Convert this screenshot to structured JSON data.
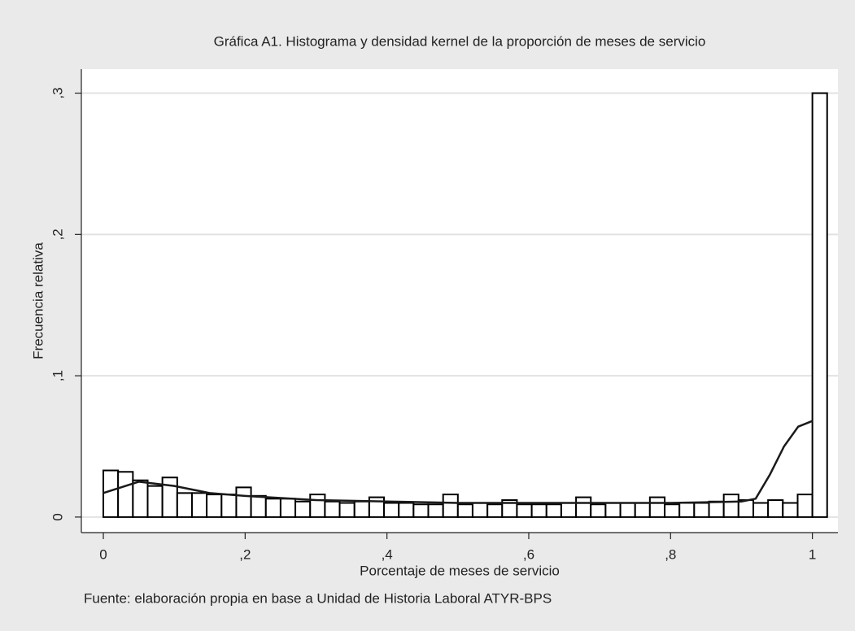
{
  "chart_data": {
    "type": "histogram",
    "title": "Gráfica A1. Histograma y densidad kernel de la proporción de meses de servicio",
    "x_label": "Porcentaje de meses de servicio",
    "y_label": "Frecuencia relativa",
    "note": "Fuente: elaboración propia en base a Unidad de Historia Laboral ATYR-BPS",
    "bins": [
      0,
      0.0208,
      0.0417,
      0.0625,
      0.0833,
      0.1042,
      0.125,
      0.1458,
      0.1667,
      0.1875,
      0.2083,
      0.2292,
      0.25,
      0.2708,
      0.2917,
      0.3125,
      0.3333,
      0.3542,
      0.375,
      0.3958,
      0.4167,
      0.4375,
      0.4583,
      0.4792,
      0.5,
      0.5208,
      0.5417,
      0.5625,
      0.5833,
      0.6042,
      0.625,
      0.6458,
      0.6667,
      0.6875,
      0.7083,
      0.7292,
      0.75,
      0.7708,
      0.7917,
      0.8125,
      0.8333,
      0.8542,
      0.875,
      0.8958,
      0.9167,
      0.9375,
      0.9583,
      0.9792,
      1,
      1.0208
    ],
    "values": [
      0.033,
      0.032,
      0.026,
      0.022,
      0.028,
      0.017,
      0.017,
      0.016,
      0.016,
      0.021,
      0.015,
      0.013,
      0.013,
      0.011,
      0.016,
      0.011,
      0.01,
      0.011,
      0.014,
      0.01,
      0.01,
      0.009,
      0.009,
      0.016,
      0.009,
      0.01,
      0.009,
      0.012,
      0.009,
      0.009,
      0.009,
      0.01,
      0.014,
      0.009,
      0.01,
      0.01,
      0.01,
      0.014,
      0.009,
      0.01,
      0.01,
      0.011,
      0.016,
      0.012,
      0.01,
      0.012,
      0.01,
      0.016,
      0.3
    ],
    "color": "#ffffff",
    "edge_color": "#000000",
    "density": {
      "x": [
        0,
        0.05,
        0.1,
        0.15,
        0.2,
        0.3,
        0.4,
        0.5,
        0.6,
        0.7,
        0.8,
        0.9,
        0.92,
        0.94,
        0.96,
        0.98,
        1.0
      ],
      "values": [
        0.017,
        0.025,
        0.022,
        0.017,
        0.015,
        0.012,
        0.011,
        0.01,
        0.01,
        0.01,
        0.01,
        0.011,
        0.013,
        0.03,
        0.05,
        0.064,
        0.068
      ],
      "color": "#1a1a1a"
    },
    "xlim": [
      -0.031,
      1.036
    ],
    "ylim": [
      -0.011,
      0.317
    ],
    "xticks": [
      0,
      {
        "value": 0.2,
        "label": ",2"
      },
      {
        "value": 0.4,
        "label": ",4"
      },
      {
        "value": 0.6,
        "label": ",6"
      },
      {
        "value": 0.8,
        "label": ",8"
      },
      1
    ],
    "yticks": [
      0,
      {
        "value": 0.1,
        "label": ",1"
      },
      {
        "value": 0.2,
        "label": ",2"
      },
      {
        "value": 0.3,
        "label": ",3"
      }
    ],
    "grid": true
  }
}
